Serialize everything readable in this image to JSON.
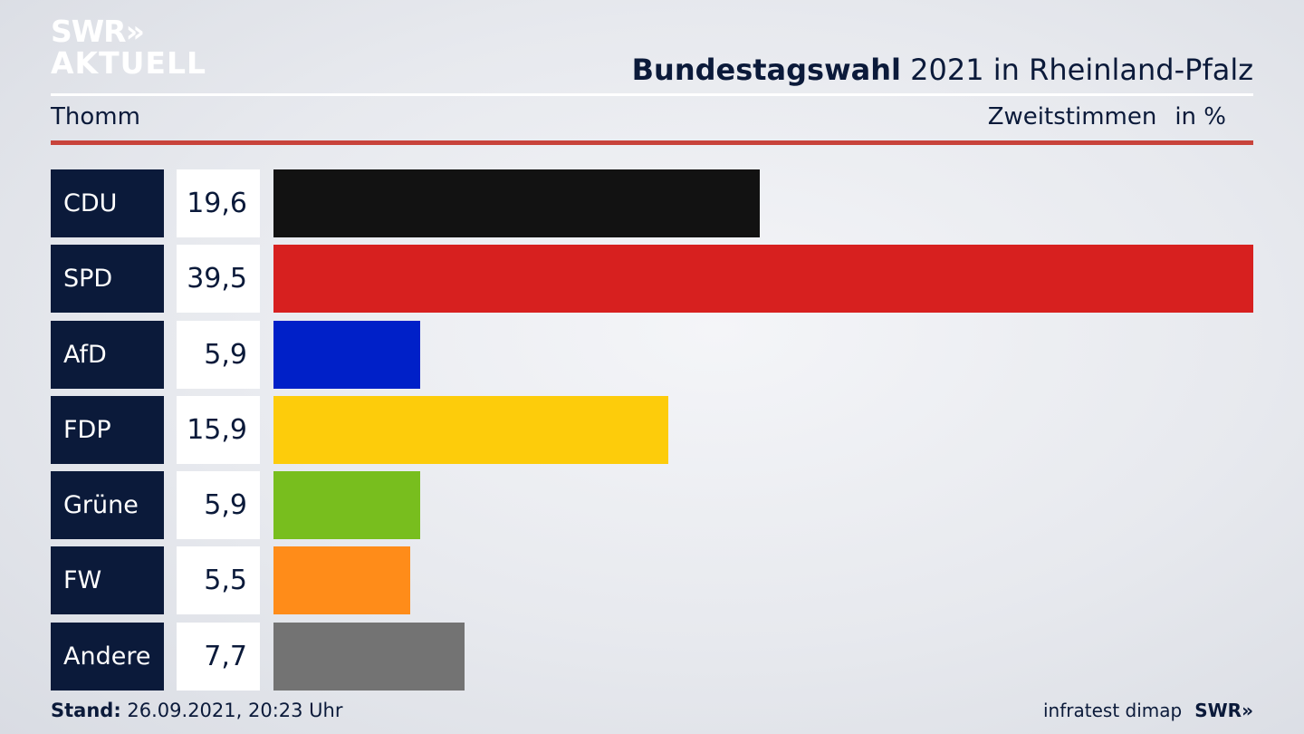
{
  "logo": {
    "line1": "SWR»",
    "line2": "AKTUELL"
  },
  "header": {
    "title_bold": "Bundestagswahl",
    "title_rest": " 2021 in Rheinland-Pfalz",
    "place": "Thomm",
    "measure": "Zweitstimmen",
    "unit": "in %"
  },
  "chart_data": {
    "type": "bar",
    "orientation": "horizontal",
    "categories": [
      "CDU",
      "SPD",
      "AfD",
      "FDP",
      "Grüne",
      "FW",
      "Andere"
    ],
    "values": [
      19.6,
      39.5,
      5.9,
      15.9,
      5.9,
      5.5,
      7.7
    ],
    "value_labels": [
      "19,6",
      "39,5",
      "5,9",
      "15,9",
      "5,9",
      "5,5",
      "7,7"
    ],
    "colors": [
      "#121212",
      "#d7201f",
      "#0020c8",
      "#fdcc0b",
      "#78be1e",
      "#ff8c19",
      "#737373"
    ],
    "xlim": [
      0,
      39.5
    ],
    "xlabel": "",
    "ylabel": "",
    "grid": false
  },
  "footer": {
    "stand_label": "Stand:",
    "stand_value": " 26.09.2021, 20:23 Uhr",
    "source": "infratest dimap",
    "brand": "SWR»"
  }
}
